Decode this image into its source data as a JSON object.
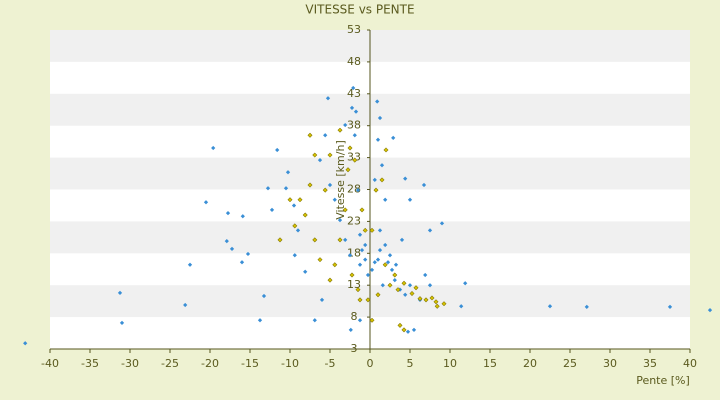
{
  "chart_data": {
    "type": "scatter",
    "title": "VITESSE vs PENTE",
    "x_label": "Pente [%]",
    "y_label": "Vitesse [km/h]",
    "xlim": [
      -40,
      40
    ],
    "ylim": [
      3,
      53
    ],
    "xticks": [
      -40,
      -35,
      -30,
      -25,
      -20,
      -15,
      -10,
      -5,
      0,
      5,
      10,
      15,
      20,
      25,
      30,
      35,
      40
    ],
    "yticks": [
      3,
      8,
      13,
      18,
      23,
      28,
      33,
      38,
      43,
      48,
      53
    ],
    "grid": "bands",
    "series": [
      {
        "color": "#3a8fd6",
        "x": [
          -43.1,
          -31.25,
          -31,
          -22.5,
          -23.1,
          -19.6,
          -20.5,
          -17.75,
          -15.9,
          -17.9,
          -17.25,
          -15.25,
          -16,
          -13.75,
          -13.25,
          -12.25,
          -12.75,
          -11.6,
          -10.25,
          -10.5,
          -9.5,
          -9,
          -9.4,
          -8.1,
          -6.9,
          -6,
          -5.25,
          -5.6,
          -6.25,
          -5,
          -4.4,
          -3.75,
          -3.1,
          -2.5,
          -2.25,
          -1.75,
          -2.1,
          -3.1,
          -1.9,
          -1.5,
          -1.25,
          -1,
          -0.6,
          -0.25,
          -2.4,
          -1.25,
          0.9,
          1.25,
          1,
          1.5,
          0.6,
          1.9,
          1.25,
          1.9,
          2.5,
          1,
          2.75,
          3.1,
          1.6,
          3.75,
          4.4,
          5,
          4,
          4.4,
          2.9,
          5,
          6.75,
          7.5,
          9,
          6.9,
          7.5,
          6.25,
          5.5,
          4.75,
          11.9,
          11.4,
          22.5,
          27.1,
          37.5,
          42.5,
          0.25,
          0.6,
          1.25,
          2.25,
          3.25,
          -1.25,
          -0.6
        ],
        "values": [
          3.9,
          11.8,
          7.1,
          16.2,
          9.9,
          34.5,
          26,
          24.3,
          23.8,
          19.9,
          18.7,
          17.9,
          16.6,
          7.5,
          11.3,
          24.8,
          28.2,
          34.2,
          30.7,
          28.2,
          25.5,
          21.6,
          17.7,
          15.1,
          7.5,
          10.7,
          42.3,
          36.5,
          32.6,
          28.7,
          26.4,
          23.2,
          20.1,
          17.7,
          40.8,
          40.2,
          43.9,
          38.1,
          36.5,
          27.9,
          20.9,
          18.5,
          17,
          14.6,
          6,
          7.5,
          41.8,
          39.2,
          35.8,
          31.8,
          29.5,
          26.4,
          21.6,
          19.3,
          17.7,
          17,
          15.4,
          13.8,
          13,
          12.3,
          11.5,
          13,
          20.1,
          29.7,
          36.1,
          26.4,
          28.7,
          21.6,
          22.7,
          14.6,
          13,
          10.7,
          6,
          5.7,
          13.3,
          9.7,
          9.7,
          9.6,
          9.6,
          9.1,
          15.4,
          16.6,
          18.5,
          16.6,
          16.2,
          16.2,
          19.3
        ]
      },
      {
        "color": "#d4c000",
        "x": [
          -7.5,
          -6.9,
          -7.5,
          -8.75,
          -8.1,
          -6.9,
          -6.25,
          -5,
          -3.75,
          -3.1,
          -2.75,
          -1.9,
          -2.5,
          -3.75,
          -1,
          -0.6,
          -1.5,
          -1.25,
          0.25,
          0.75,
          1.5,
          0.25,
          1.9,
          3.1,
          4.25,
          5.25,
          6.25,
          7,
          8.25,
          9.25,
          8.4,
          7.75,
          3.75,
          4.25,
          2,
          -5,
          -9.4,
          -11.25,
          -10,
          -5.6,
          -4.4,
          -2.25,
          -0.25,
          1,
          2.5,
          3.5,
          5.75
        ],
        "values": [
          36.5,
          33.4,
          28.7,
          26.4,
          24,
          20.1,
          17,
          13.8,
          20.1,
          24.8,
          31.1,
          32.6,
          34.5,
          37.3,
          24.8,
          21.6,
          12.3,
          10.7,
          7.5,
          27.9,
          29.5,
          21.6,
          16.2,
          14.6,
          13.3,
          11.7,
          10.9,
          10.7,
          10.4,
          10.1,
          9.7,
          11,
          6.7,
          6,
          34.2,
          33.4,
          22.3,
          20.1,
          26.4,
          27.9,
          16.2,
          14.6,
          10.7,
          11.5,
          13,
          12.3,
          12.6
        ]
      }
    ]
  }
}
